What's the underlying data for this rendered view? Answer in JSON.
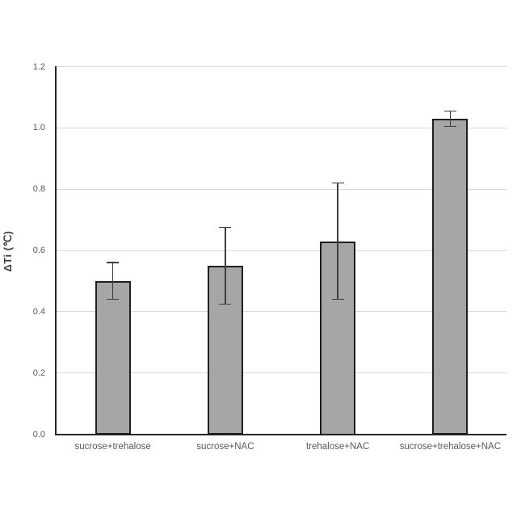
{
  "chart_data": {
    "type": "bar",
    "title": "",
    "categories": [
      "sucrose+trehalose",
      "sucrose+NAC",
      "trehalose+NAC",
      "sucrose+trehalose+NAC"
    ],
    "values": [
      0.5,
      0.55,
      0.63,
      1.03
    ],
    "error_bars": [
      0.06,
      0.125,
      0.19,
      0.025
    ],
    "xlabel": "",
    "ylabel": "ΔTi (℃)",
    "ylim": [
      0,
      1.2
    ],
    "ytick_step": 0.2,
    "ytick_labels": [
      "0.0",
      "0.2",
      "0.4",
      "0.6",
      "0.8",
      "1.0",
      "1.2"
    ],
    "grid": "horizontal",
    "legend_position": "none",
    "colors": {
      "bar_fill": "#a6a6a6",
      "bar_border": "#1f1f1f",
      "gridline": "#d9d9d9",
      "axis": "#262626",
      "tick_label": "#595959",
      "error_bar": "#3d3d3d",
      "background": "#ffffff"
    }
  }
}
